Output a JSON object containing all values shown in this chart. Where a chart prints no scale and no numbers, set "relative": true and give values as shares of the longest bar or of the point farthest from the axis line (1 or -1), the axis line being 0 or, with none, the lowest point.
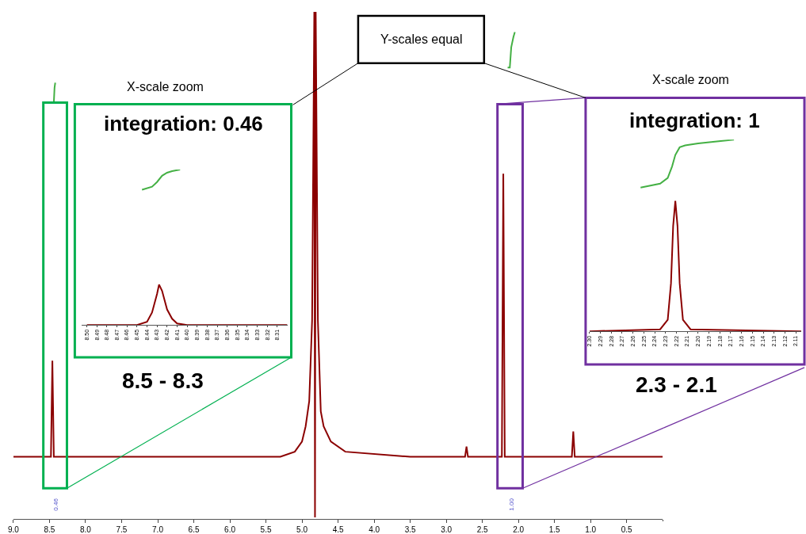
{
  "chart_data": [
    {
      "type": "line",
      "relative": true,
      "xlim": [
        9.0,
        0.0
      ],
      "xticks": [
        {
          "value": 9.0,
          "label": "9.0"
        },
        8.5,
        {
          "value": 8.0,
          "label": "8.0"
        },
        7.5,
        {
          "value": 7.0,
          "label": "7.0"
        },
        6.5,
        {
          "value": 6.0,
          "label": "6.0"
        },
        5.5,
        {
          "value": 5.0,
          "label": "5.0"
        },
        4.5,
        {
          "value": 4.0,
          "label": "4.0"
        },
        3.5,
        {
          "value": 3.0,
          "label": "3.0"
        },
        2.5,
        {
          "value": 2.0,
          "label": "2.0"
        },
        1.5,
        {
          "value": 1.0,
          "label": "1.0"
        },
        0.5
      ],
      "series": [
        {
          "color": "#8b0000",
          "x": [
            9.0,
            8.5,
            8.48,
            8.46,
            8.44,
            5.3,
            5.1,
            5.0,
            4.95,
            4.9,
            4.86,
            4.83,
            4.82,
            4.81,
            4.78,
            4.74,
            4.7,
            4.6,
            4.4,
            3.5,
            2.74,
            2.72,
            2.7,
            2.23,
            2.21,
            2.19,
            1.26,
            1.24,
            1.22,
            0.0
          ],
          "values": [
            0.12,
            0.12,
            0.12,
            0.31,
            0.12,
            0.12,
            0.13,
            0.15,
            0.18,
            0.23,
            0.39,
            1.0,
            0,
            1.0,
            0.39,
            0.21,
            0.18,
            0.15,
            0.13,
            0.12,
            0.12,
            0.14,
            0.12,
            0.12,
            0.68,
            0.12,
            0.12,
            0.17,
            0.12,
            0.12
          ]
        },
        {
          "color": "#44b044",
          "x": [
            8.45,
            8.44,
            8.43,
            8.42,
            5.0,
            2.15,
            2.12,
            2.1,
            2.07,
            2.05
          ],
          "values": [
            0.82,
            0.82,
            0.85,
            0.86,
            null,
            0.89,
            0.89,
            0.93,
            0.95,
            0.96
          ]
        }
      ],
      "annotations": [
        "X-scale zoom",
        "X-scale zoom",
        "Y-scales equal",
        "8.5 - 8.3",
        "2.3 - 2.1",
        "0.46",
        "1.00"
      ],
      "tick_labels": "x"
    },
    {
      "type": "line",
      "relative": true,
      "title": "integration: 0.46",
      "xlim": [
        8.505,
        8.3
      ],
      "xticks": [
        {
          "value": 8.5,
          "label": "8.50"
        },
        8.49,
        8.48,
        8.47,
        8.46,
        8.45,
        8.44,
        8.43,
        8.42,
        8.41,
        {
          "value": 8.4,
          "label": "8.40"
        },
        8.39,
        8.38,
        8.37,
        8.36,
        8.35,
        8.34,
        8.33,
        8.32,
        8.31
      ],
      "series": [
        {
          "color": "#8b0000",
          "x": [
            8.5,
            8.45,
            8.44,
            8.435,
            8.43,
            8.428,
            8.425,
            8.42,
            8.415,
            8.41,
            8.4,
            8.3
          ],
          "values": [
            0,
            0,
            0.02,
            0.08,
            0.2,
            0.26,
            0.22,
            0.1,
            0.04,
            0.01,
            0,
            0
          ]
        },
        {
          "color": "#44b044",
          "x": [
            8.445,
            8.435,
            8.43,
            8.425,
            8.42,
            8.415,
            8.407
          ],
          "values": [
            0.87,
            0.89,
            0.92,
            0.96,
            0.98,
            0.99,
            1.0
          ]
        }
      ],
      "tick_labels": "x"
    },
    {
      "type": "line",
      "relative": true,
      "title": "integration: 1",
      "xlim": [
        2.3,
        2.105
      ],
      "xticks": [
        {
          "value": 2.3,
          "label": "2.30"
        },
        2.29,
        2.28,
        2.27,
        2.26,
        2.25,
        2.24,
        2.23,
        2.22,
        2.21,
        {
          "value": 2.2,
          "label": "2.20"
        },
        2.19,
        2.18,
        2.17,
        2.16,
        2.15,
        2.14,
        2.13,
        2.12,
        2.11
      ],
      "series": [
        {
          "color": "#8b0000",
          "x": [
            2.3,
            2.235,
            2.228,
            2.225,
            2.223,
            2.221,
            2.219,
            2.217,
            2.214,
            2.207,
            2.105
          ],
          "values": [
            0,
            0.01,
            0.06,
            0.25,
            0.55,
            0.68,
            0.55,
            0.25,
            0.06,
            0.01,
            0
          ]
        },
        {
          "color": "#44b044",
          "x": [
            2.253,
            2.235,
            2.228,
            2.224,
            2.221,
            2.217,
            2.212,
            2.2,
            2.167
          ],
          "values": [
            0.75,
            0.77,
            0.8,
            0.86,
            0.92,
            0.96,
            0.97,
            0.98,
            1.0
          ]
        }
      ],
      "tick_labels": "x"
    }
  ]
}
